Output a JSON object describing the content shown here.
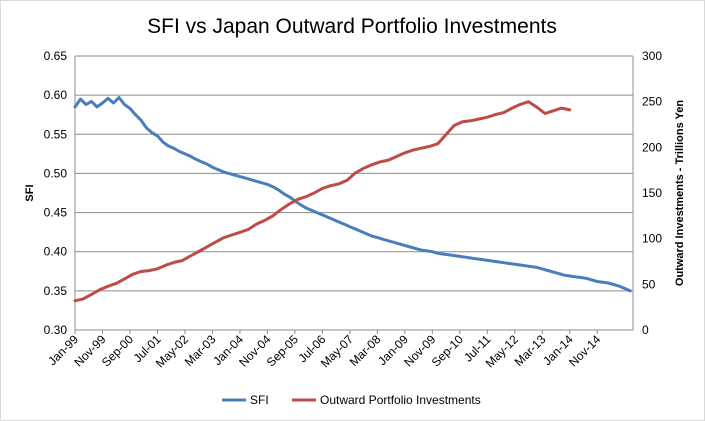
{
  "chart_data": {
    "type": "line",
    "title": "SFI vs Japan Outward Portfolio Investments",
    "xlabel": "",
    "ylabel": "SFI",
    "y2label": "Outward Investments - Trillions  Yen",
    "ylim": [
      0.3,
      0.65
    ],
    "y2lim": [
      0,
      300
    ],
    "y_ticks": [
      "0.30",
      "0.35",
      "0.40",
      "0.45",
      "0.50",
      "0.55",
      "0.60",
      "0.65"
    ],
    "y2_ticks": [
      "0",
      "50",
      "100",
      "150",
      "200",
      "250",
      "300"
    ],
    "x_ticks": [
      "Jan-99",
      "Nov-99",
      "Sep-00",
      "Jul-01",
      "May-02",
      "Mar-03",
      "Jan-04",
      "Nov-04",
      "Sep-05",
      "Jul-06",
      "May-07",
      "Mar-08",
      "Jan-09",
      "Nov-09",
      "Sep-10",
      "Jul-11",
      "May-12",
      "Mar-13",
      "Jan-14",
      "Nov-14"
    ],
    "x_range": [
      "1999-01",
      "2015-12"
    ],
    "grid": "horizontal",
    "legend_position": "bottom",
    "series": [
      {
        "name": "SFI",
        "axis": "left",
        "color": "#4a7ebb",
        "points": [
          [
            "1999-01",
            0.585
          ],
          [
            "1999-03",
            0.595
          ],
          [
            "1999-05",
            0.588
          ],
          [
            "1999-07",
            0.592
          ],
          [
            "1999-09",
            0.585
          ],
          [
            "1999-11",
            0.59
          ],
          [
            "2000-01",
            0.596
          ],
          [
            "2000-03",
            0.59
          ],
          [
            "2000-05",
            0.597
          ],
          [
            "2000-07",
            0.588
          ],
          [
            "2000-09",
            0.583
          ],
          [
            "2000-11",
            0.575
          ],
          [
            "2001-01",
            0.568
          ],
          [
            "2001-03",
            0.558
          ],
          [
            "2001-05",
            0.552
          ],
          [
            "2001-07",
            0.548
          ],
          [
            "2001-09",
            0.54
          ],
          [
            "2001-11",
            0.535
          ],
          [
            "2002-01",
            0.532
          ],
          [
            "2002-03",
            0.528
          ],
          [
            "2002-05",
            0.525
          ],
          [
            "2002-07",
            0.522
          ],
          [
            "2002-09",
            0.518
          ],
          [
            "2002-11",
            0.515
          ],
          [
            "2003-01",
            0.512
          ],
          [
            "2003-03",
            0.508
          ],
          [
            "2003-05",
            0.505
          ],
          [
            "2003-07",
            0.502
          ],
          [
            "2003-09",
            0.5
          ],
          [
            "2003-11",
            0.498
          ],
          [
            "2004-01",
            0.496
          ],
          [
            "2004-03",
            0.494
          ],
          [
            "2004-05",
            0.492
          ],
          [
            "2004-07",
            0.49
          ],
          [
            "2004-09",
            0.488
          ],
          [
            "2004-11",
            0.486
          ],
          [
            "2005-01",
            0.483
          ],
          [
            "2005-03",
            0.479
          ],
          [
            "2005-05",
            0.474
          ],
          [
            "2005-07",
            0.47
          ],
          [
            "2005-09",
            0.465
          ],
          [
            "2005-11",
            0.46
          ],
          [
            "2006-01",
            0.456
          ],
          [
            "2006-03",
            0.453
          ],
          [
            "2006-05",
            0.45
          ],
          [
            "2006-07",
            0.447
          ],
          [
            "2006-09",
            0.444
          ],
          [
            "2006-11",
            0.441
          ],
          [
            "2007-01",
            0.438
          ],
          [
            "2007-03",
            0.435
          ],
          [
            "2007-05",
            0.432
          ],
          [
            "2007-07",
            0.429
          ],
          [
            "2007-09",
            0.426
          ],
          [
            "2007-11",
            0.423
          ],
          [
            "2008-01",
            0.42
          ],
          [
            "2008-03",
            0.418
          ],
          [
            "2008-05",
            0.416
          ],
          [
            "2008-07",
            0.414
          ],
          [
            "2008-09",
            0.412
          ],
          [
            "2008-11",
            0.41
          ],
          [
            "2009-01",
            0.408
          ],
          [
            "2009-03",
            0.406
          ],
          [
            "2009-05",
            0.404
          ],
          [
            "2009-07",
            0.402
          ],
          [
            "2009-09",
            0.401
          ],
          [
            "2009-11",
            0.4
          ],
          [
            "2010-01",
            0.398
          ],
          [
            "2010-03",
            0.397
          ],
          [
            "2010-05",
            0.396
          ],
          [
            "2010-07",
            0.395
          ],
          [
            "2010-09",
            0.394
          ],
          [
            "2010-11",
            0.393
          ],
          [
            "2011-01",
            0.392
          ],
          [
            "2011-03",
            0.391
          ],
          [
            "2011-05",
            0.39
          ],
          [
            "2011-07",
            0.389
          ],
          [
            "2011-09",
            0.388
          ],
          [
            "2011-11",
            0.387
          ],
          [
            "2012-01",
            0.386
          ],
          [
            "2012-03",
            0.385
          ],
          [
            "2012-05",
            0.384
          ],
          [
            "2012-07",
            0.383
          ],
          [
            "2012-09",
            0.382
          ],
          [
            "2012-11",
            0.381
          ],
          [
            "2013-01",
            0.38
          ],
          [
            "2013-03",
            0.378
          ],
          [
            "2013-05",
            0.376
          ],
          [
            "2013-07",
            0.374
          ],
          [
            "2013-09",
            0.372
          ],
          [
            "2013-11",
            0.37
          ],
          [
            "2014-01",
            0.369
          ],
          [
            "2014-03",
            0.368
          ],
          [
            "2014-05",
            0.367
          ],
          [
            "2014-07",
            0.366
          ],
          [
            "2014-09",
            0.364
          ],
          [
            "2014-11",
            0.362
          ],
          [
            "2015-01",
            0.361
          ],
          [
            "2015-03",
            0.36
          ],
          [
            "2015-05",
            0.358
          ],
          [
            "2015-07",
            0.356
          ],
          [
            "2015-09",
            0.353
          ],
          [
            "2015-11",
            0.35
          ]
        ]
      },
      {
        "name": "Outward Portfolio Investments",
        "axis": "right",
        "color": "#be4b48",
        "points": [
          [
            "1999-01",
            32
          ],
          [
            "1999-04",
            34
          ],
          [
            "1999-07",
            39
          ],
          [
            "1999-10",
            44
          ],
          [
            "2000-01",
            48
          ],
          [
            "2000-04",
            51
          ],
          [
            "2000-07",
            56
          ],
          [
            "2000-10",
            61
          ],
          [
            "2001-01",
            64
          ],
          [
            "2001-04",
            65
          ],
          [
            "2001-07",
            67
          ],
          [
            "2001-10",
            71
          ],
          [
            "2002-01",
            74
          ],
          [
            "2002-04",
            76
          ],
          [
            "2002-07",
            81
          ],
          [
            "2002-10",
            86
          ],
          [
            "2003-01",
            91
          ],
          [
            "2003-04",
            96
          ],
          [
            "2003-07",
            101
          ],
          [
            "2003-10",
            104
          ],
          [
            "2004-01",
            107
          ],
          [
            "2004-04",
            110
          ],
          [
            "2004-07",
            116
          ],
          [
            "2004-10",
            120
          ],
          [
            "2005-01",
            125
          ],
          [
            "2005-04",
            132
          ],
          [
            "2005-07",
            138
          ],
          [
            "2005-10",
            143
          ],
          [
            "2006-01",
            146
          ],
          [
            "2006-04",
            150
          ],
          [
            "2006-07",
            155
          ],
          [
            "2006-10",
            158
          ],
          [
            "2007-01",
            160
          ],
          [
            "2007-04",
            164
          ],
          [
            "2007-07",
            172
          ],
          [
            "2007-10",
            177
          ],
          [
            "2008-01",
            181
          ],
          [
            "2008-04",
            184
          ],
          [
            "2008-07",
            186
          ],
          [
            "2008-10",
            190
          ],
          [
            "2009-01",
            194
          ],
          [
            "2009-04",
            197
          ],
          [
            "2009-07",
            199
          ],
          [
            "2009-10",
            201
          ],
          [
            "2010-01",
            204
          ],
          [
            "2010-04",
            214
          ],
          [
            "2010-07",
            224
          ],
          [
            "2010-10",
            228
          ],
          [
            "2011-01",
            229
          ],
          [
            "2011-04",
            231
          ],
          [
            "2011-07",
            233
          ],
          [
            "2011-10",
            236
          ],
          [
            "2012-01",
            238
          ],
          [
            "2012-04",
            243
          ],
          [
            "2012-07",
            247
          ],
          [
            "2012-10",
            250
          ],
          [
            "2013-01",
            244
          ],
          [
            "2013-04",
            237
          ],
          [
            "2013-07",
            240
          ],
          [
            "2013-10",
            243
          ],
          [
            "2014-01",
            241
          ]
        ]
      }
    ]
  }
}
